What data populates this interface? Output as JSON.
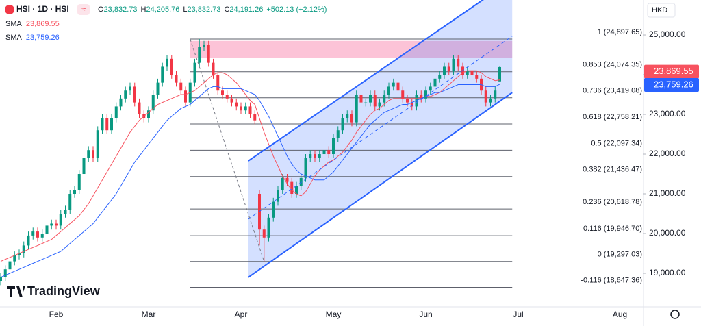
{
  "header": {
    "symbol": "HSI · 1D · HSI",
    "ohlc": [
      {
        "key": "O",
        "value": "23,832.73"
      },
      {
        "key": "H",
        "value": "24,205.76"
      },
      {
        "key": "L",
        "value": "23,832.73"
      },
      {
        "key": "C",
        "value": "24,191.26"
      }
    ],
    "change": "+502.13 (+2.12%)",
    "currency": "HKD",
    "logo": "TradingView"
  },
  "chart_data": {
    "type": "candlestick",
    "categories": [
      null,
      null,
      null,
      null,
      null,
      null,
      null,
      null,
      null,
      null,
      null,
      null,
      "Feb",
      null,
      null,
      null,
      null,
      null,
      null,
      null,
      null,
      null,
      null,
      null,
      null,
      null,
      null,
      null,
      null,
      null,
      null,
      null,
      "Mar",
      null,
      null,
      null,
      null,
      null,
      null,
      null,
      null,
      null,
      null,
      null,
      null,
      null,
      null,
      null,
      null,
      null,
      null,
      null,
      "Apr",
      null,
      null,
      null,
      null,
      null,
      null,
      null,
      null,
      null,
      null,
      null,
      null,
      null,
      null,
      null,
      null,
      null,
      null,
      null,
      "May",
      null,
      null,
      null,
      null,
      null,
      null,
      null,
      null,
      null,
      null,
      null,
      null,
      null,
      null,
      null,
      null,
      null,
      null,
      null,
      "Jun",
      null,
      null,
      null,
      null,
      null,
      null,
      null,
      null,
      null,
      null,
      null,
      null,
      null,
      null,
      null,
      null,
      null,
      null,
      null,
      "Jul",
      null,
      null,
      null,
      null,
      null,
      null,
      null,
      null,
      null,
      null,
      null,
      null,
      null,
      null,
      null,
      null,
      null,
      null,
      null,
      null,
      null,
      "Aug",
      null
    ],
    "up_color": "#089981",
    "down_color": "#f23645",
    "open": [
      18800,
      18900,
      19100,
      19300,
      19450,
      19500,
      19700,
      19950,
      20050,
      19900,
      20000,
      20200,
      20250,
      20200,
      20500,
      20600,
      21000,
      21100,
      21500,
      21900,
      22100,
      21900,
      22600,
      22900,
      22600,
      22900,
      23200,
      23400,
      23600,
      23700,
      23300,
      23000,
      22900,
      23100,
      23500,
      23800,
      24200,
      24400,
      24000,
      23800,
      23600,
      23300,
      23800,
      24300,
      24700,
      24750,
      24300,
      24000,
      23600,
      23500,
      23400,
      23300,
      23200,
      23100,
      23200,
      23000,
      21000,
      20100,
      19900,
      20400,
      20800,
      21100,
      21400,
      21300,
      21000,
      21200,
      21400,
      21900,
      22000,
      21900,
      22000,
      22100,
      22000,
      22400,
      22600,
      22900,
      23000,
      22800,
      23500,
      23300,
      23300,
      23500,
      23200,
      23300,
      23500,
      23700,
      23800,
      23600,
      23400,
      23300,
      23200,
      23500,
      23400,
      23600,
      23700,
      23900,
      24000,
      24200,
      24100,
      24400,
      24200,
      24000,
      24100,
      24000,
      23900,
      23600,
      23300,
      23400,
      23832.73,
      null,
      null,
      null,
      null,
      null,
      null,
      null,
      null,
      null,
      null,
      null,
      null,
      null,
      null,
      null,
      null,
      null,
      null,
      null,
      null,
      null,
      null,
      null,
      null,
      null,
      null,
      null
    ],
    "high": [
      19000,
      19200,
      19400,
      19550,
      19600,
      19800,
      20050,
      20150,
      20150,
      20100,
      20300,
      20350,
      20350,
      20600,
      20700,
      21100,
      21200,
      21600,
      22000,
      22200,
      22200,
      22700,
      23000,
      23000,
      23000,
      23300,
      23500,
      23700,
      23800,
      23800,
      23400,
      23100,
      23200,
      23600,
      23900,
      24300,
      24500,
      24500,
      24100,
      23900,
      23700,
      23900,
      24400,
      24897.65,
      24850,
      24850,
      24400,
      24100,
      23700,
      23600,
      23500,
      23400,
      23300,
      23300,
      23300,
      23100,
      21100,
      20200,
      20500,
      20900,
      21200,
      21500,
      21500,
      21400,
      21300,
      21500,
      22000,
      22100,
      22100,
      22100,
      22200,
      22200,
      22500,
      22700,
      23000,
      23100,
      23100,
      23600,
      23600,
      23400,
      23600,
      23600,
      23400,
      23600,
      23800,
      23900,
      23900,
      23700,
      23500,
      23400,
      23600,
      23600,
      23700,
      23800,
      24000,
      24100,
      24300,
      24300,
      24500,
      24500,
      24300,
      24200,
      24200,
      24100,
      24000,
      23700,
      23500,
      23700,
      24205.76,
      null,
      null,
      null,
      null,
      null,
      null,
      null,
      null,
      null,
      null,
      null,
      null,
      null,
      null,
      null,
      null,
      null,
      null,
      null,
      null,
      null,
      null,
      null,
      null,
      null,
      null,
      null
    ],
    "low": [
      18700,
      18800,
      19000,
      19200,
      19350,
      19400,
      19600,
      19850,
      19800,
      19800,
      19900,
      20100,
      20100,
      20100,
      20400,
      20500,
      20900,
      21000,
      21400,
      21800,
      21800,
      21800,
      22500,
      22500,
      22500,
      22800,
      23100,
      23300,
      23500,
      23200,
      22900,
      22800,
      22800,
      23000,
      23400,
      23700,
      24100,
      23900,
      23700,
      23500,
      23200,
      23200,
      23700,
      24200,
      24600,
      24200,
      23900,
      23500,
      23400,
      23300,
      23200,
      23100,
      23000,
      23000,
      22900,
      22750,
      19700,
      19297.03,
      19800,
      20300,
      20700,
      21000,
      21200,
      20900,
      20900,
      21100,
      21300,
      21800,
      21800,
      21800,
      21900,
      21900,
      21900,
      22300,
      22500,
      22800,
      22700,
      22700,
      23200,
      23200,
      23200,
      23100,
      23100,
      23200,
      23400,
      23600,
      23500,
      23300,
      23200,
      23100,
      23100,
      23300,
      23300,
      23500,
      23600,
      23800,
      23900,
      24000,
      24000,
      24100,
      23900,
      23900,
      23900,
      23800,
      23500,
      23200,
      23200,
      23300,
      23832.73,
      null,
      null,
      null,
      null,
      null,
      null,
      null,
      null,
      null,
      null,
      null,
      null,
      null,
      null,
      null,
      null,
      null,
      null,
      null,
      null,
      null,
      null,
      null,
      null,
      null,
      null,
      null
    ],
    "close": [
      18900,
      19100,
      19300,
      19450,
      19500,
      19700,
      19950,
      20050,
      19900,
      20000,
      20200,
      20250,
      20200,
      20500,
      20600,
      21000,
      21100,
      21500,
      21900,
      22100,
      21900,
      22600,
      22900,
      22600,
      22900,
      23200,
      23400,
      23600,
      23700,
      23300,
      23000,
      22900,
      23100,
      23500,
      23800,
      24200,
      24400,
      24000,
      23800,
      23600,
      23300,
      23800,
      24300,
      24700,
      24750,
      24300,
      24000,
      23600,
      23500,
      23400,
      23300,
      23200,
      23100,
      23200,
      23000,
      22850,
      20100,
      19900,
      20400,
      20800,
      21100,
      21400,
      21300,
      21000,
      21200,
      21400,
      21900,
      22000,
      21900,
      22000,
      22100,
      22000,
      22400,
      22600,
      22900,
      23000,
      22800,
      23500,
      23300,
      23300,
      23500,
      23200,
      23300,
      23500,
      23700,
      23800,
      23600,
      23400,
      23300,
      23200,
      23500,
      23400,
      23600,
      23700,
      23900,
      24000,
      24200,
      24100,
      24400,
      24200,
      24000,
      24100,
      24000,
      23900,
      23600,
      23300,
      23400,
      23600,
      24191.26,
      null,
      null,
      null,
      null,
      null,
      null,
      null,
      null,
      null,
      null,
      null,
      null,
      null,
      null,
      null,
      null,
      null,
      null,
      null,
      null,
      null,
      null,
      null,
      null,
      null,
      null,
      null
    ],
    "series": [
      {
        "name": "SMA",
        "color": "#f7525f",
        "value_label": "23,869.55",
        "values": [
          19300,
          19350,
          19400,
          19450,
          19500,
          19550,
          19600,
          19650,
          19700,
          19750,
          19800,
          19850,
          19950,
          20050,
          20150,
          20250,
          20350,
          20450,
          20600,
          20750,
          20950,
          21150,
          21350,
          21550,
          21750,
          21950,
          22150,
          22350,
          22550,
          22700,
          22850,
          22950,
          23050,
          23150,
          23250,
          23300,
          23350,
          23400,
          23450,
          23500,
          23500,
          23550,
          23600,
          23700,
          23800,
          23900,
          24000,
          24050,
          24050,
          24000,
          23900,
          23800,
          23650,
          23500,
          23350,
          23250,
          22900,
          22550,
          22250,
          21950,
          21700,
          21450,
          21250,
          21100,
          21000,
          20950,
          21050,
          21250,
          21450,
          21600,
          21700,
          21800,
          21850,
          21950,
          22050,
          22200,
          22350,
          22550,
          22700,
          22850,
          23000,
          23100,
          23150,
          23250,
          23350,
          23400,
          23400,
          23400,
          23400,
          23400,
          23400,
          23400,
          23450,
          23450,
          23500,
          23550,
          23650,
          23750,
          23850,
          23950,
          24050,
          24100,
          24100,
          24100,
          24050,
          23950,
          23900,
          23850,
          23869.55,
          null,
          null,
          null,
          null,
          null,
          null,
          null,
          null,
          null,
          null,
          null,
          null,
          null,
          null,
          null,
          null,
          null,
          null,
          null,
          null,
          null,
          null,
          null,
          null,
          null,
          null,
          null
        ]
      },
      {
        "name": "SMA",
        "color": "#2962ff",
        "value_label": "23,759.26",
        "values": [
          18900,
          18950,
          19000,
          19050,
          19100,
          19150,
          19200,
          19250,
          19300,
          19350,
          19400,
          19450,
          19500,
          19550,
          19650,
          19750,
          19850,
          19950,
          20050,
          20150,
          20250,
          20400,
          20550,
          20700,
          20850,
          21000,
          21200,
          21400,
          21600,
          21800,
          21950,
          22100,
          22250,
          22400,
          22550,
          22700,
          22850,
          22950,
          23050,
          23150,
          23200,
          23250,
          23350,
          23450,
          23550,
          23650,
          23700,
          23700,
          23650,
          23650,
          23650,
          23650,
          23650,
          23600,
          23550,
          23500,
          23350,
          23150,
          22950,
          22700,
          22450,
          22200,
          21950,
          21750,
          21600,
          21500,
          21450,
          21400,
          21350,
          21350,
          21350,
          21450,
          21550,
          21700,
          21850,
          22000,
          22150,
          22300,
          22450,
          22600,
          22750,
          22850,
          22950,
          23050,
          23100,
          23150,
          23200,
          23250,
          23250,
          23300,
          23350,
          23400,
          23450,
          23500,
          23550,
          23550,
          23600,
          23650,
          23700,
          23750,
          23750,
          23750,
          23750,
          23750,
          23750,
          23700,
          23700,
          23700,
          23759.26,
          null,
          null,
          null,
          null,
          null,
          null,
          null,
          null,
          null,
          null,
          null,
          null,
          null,
          null,
          null,
          null,
          null,
          null,
          null,
          null,
          null,
          null,
          null,
          null,
          null,
          null,
          null
        ]
      }
    ],
    "ylim": [
      18155,
      25880
    ],
    "yticks": [
      {
        "value": 19000,
        "label": "19,000.00"
      },
      {
        "value": 20000,
        "label": "20,000.00"
      },
      {
        "value": 21000,
        "label": "21,000.00"
      },
      {
        "value": 22000,
        "label": "22,000.00"
      },
      {
        "value": 23000,
        "label": "23,000.00"
      },
      {
        "value": 24000,
        "label": "24,000.00"
      },
      {
        "value": 25000,
        "label": "25,000.00"
      }
    ],
    "zone": {
      "from": 41,
      "to": 110.7,
      "low": 24420,
      "high": 24850
    },
    "channel": {
      "upper": [
        [
          53.6,
          21830
        ],
        [
          110.7,
          26390
        ]
      ],
      "lower": [
        [
          53.6,
          18900
        ],
        [
          110.7,
          23550
        ]
      ]
    },
    "fib": {
      "from": [
        41,
        24897.65
      ],
      "to": [
        57,
        19297.03
      ],
      "extend_to": 110.7,
      "levels": [
        {
          "value": 24897.65,
          "label": "1 (24,897.65)"
        },
        {
          "value": 24074.35,
          "label": "0.853 (24,074.35)"
        },
        {
          "value": 23419.08,
          "label": "0.736 (23,419.08)"
        },
        {
          "value": 22758.21,
          "label": "0.618 (22,758.21)"
        },
        {
          "value": 22097.34,
          "label": "0.5 (22,097.34)"
        },
        {
          "value": 21436.47,
          "label": "0.382 (21,436.47)"
        },
        {
          "value": 20618.78,
          "label": "0.236 (20,618.78)"
        },
        {
          "value": 19946.7,
          "label": "0.116 (19,946.70)"
        },
        {
          "value": 19297.03,
          "label": "0 (19,297.03)"
        },
        {
          "value": 18647.36,
          "label": "-0.116 (18,647.36)"
        }
      ]
    }
  }
}
